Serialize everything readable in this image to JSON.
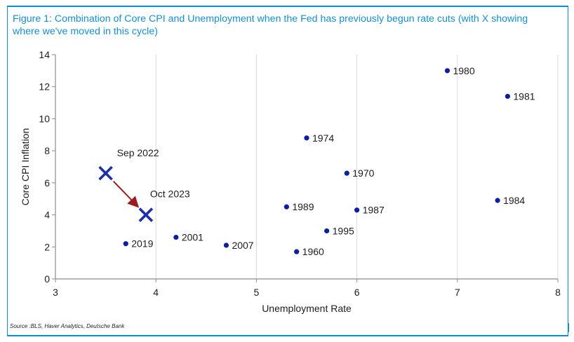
{
  "figure": {
    "title": "Figure 1: Combination of Core CPI and Unemployment when the Fed has previously begun rate cuts (with X showing where we've moved in this cycle)",
    "source": "Source :BLS, Haver Analytics, Deutsche Bank"
  },
  "chart_data": {
    "type": "scatter",
    "title": "Figure 1: Combination of Core CPI and Unemployment when the Fed has previously begun rate cuts (with X showing where we've moved in this cycle)",
    "xlabel": "Unemployment Rate",
    "ylabel": "Core CPI Inflation",
    "xlim": [
      3,
      8
    ],
    "ylim": [
      0,
      14
    ],
    "x_ticks": [
      3,
      4,
      5,
      6,
      7,
      8
    ],
    "y_ticks": [
      0,
      2,
      4,
      6,
      8,
      10,
      12,
      14
    ],
    "grid": "vertical",
    "points": [
      {
        "label": "1960",
        "x": 5.4,
        "y": 1.7
      },
      {
        "label": "1970",
        "x": 5.9,
        "y": 6.6
      },
      {
        "label": "1974",
        "x": 5.5,
        "y": 8.8
      },
      {
        "label": "1980",
        "x": 6.9,
        "y": 13.0
      },
      {
        "label": "1981",
        "x": 7.5,
        "y": 11.4
      },
      {
        "label": "1984",
        "x": 7.4,
        "y": 4.9
      },
      {
        "label": "1987",
        "x": 6.0,
        "y": 4.3
      },
      {
        "label": "1989",
        "x": 5.3,
        "y": 4.5
      },
      {
        "label": "1995",
        "x": 5.7,
        "y": 3.0
      },
      {
        "label": "2001",
        "x": 4.2,
        "y": 2.6
      },
      {
        "label": "2007",
        "x": 4.7,
        "y": 2.1
      },
      {
        "label": "2019",
        "x": 3.7,
        "y": 2.2
      }
    ],
    "current_cycle": [
      {
        "label": "Sep 2022",
        "x": 3.5,
        "y": 6.6
      },
      {
        "label": "Oct 2023",
        "x": 3.9,
        "y": 4.0
      }
    ],
    "arrow": {
      "from": "Sep 2022",
      "to": "Oct 2023"
    },
    "colors": {
      "point": "#0d1f9e",
      "current_marker": "#1d2fa6",
      "arrow": "#9b1d1d",
      "grid": "#d9d9d9",
      "axis": "#8c8c8c"
    }
  }
}
